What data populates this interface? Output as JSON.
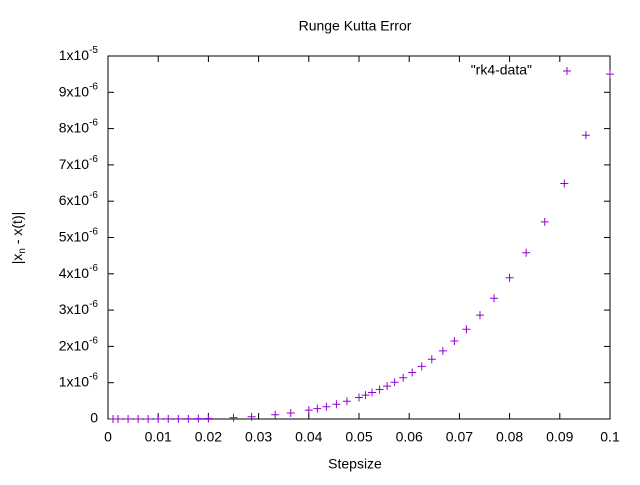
{
  "chart_data": {
    "type": "scatter",
    "title": "Runge Kutta Error",
    "xlabel": "Stepsize",
    "ylabel": {
      "text": "|x",
      "subscript": "n",
      "suffix": " - x(t)|"
    },
    "xlim": [
      0,
      0.1
    ],
    "ylim": [
      0,
      1e-05
    ],
    "xticks": [
      0,
      0.01,
      0.02,
      0.03,
      0.04,
      0.05,
      0.06,
      0.07,
      0.08,
      0.09,
      0.1
    ],
    "yticks": [
      0,
      {
        "value": 1e-06,
        "label": "1x10",
        "exponent": "-6"
      },
      {
        "value": 2e-06,
        "label": "2x10",
        "exponent": "-6"
      },
      {
        "value": 3e-06,
        "label": "3x10",
        "exponent": "-6"
      },
      {
        "value": 4e-06,
        "label": "4x10",
        "exponent": "-6"
      },
      {
        "value": 5e-06,
        "label": "5x10",
        "exponent": "-6"
      },
      {
        "value": 6e-06,
        "label": "6x10",
        "exponent": "-6"
      },
      {
        "value": 7e-06,
        "label": "7x10",
        "exponent": "-6"
      },
      {
        "value": 8e-06,
        "label": "8x10",
        "exponent": "-6"
      },
      {
        "value": 9e-06,
        "label": "9x10",
        "exponent": "-6"
      },
      {
        "value": 1e-05,
        "label": "1x10",
        "exponent": "-5"
      }
    ],
    "legend": "top-right",
    "series": [
      {
        "name": "\"rk4-data\"",
        "color": "#9400d3",
        "x": [
          0.1,
          0.0952,
          0.0909,
          0.087,
          0.0833,
          0.08,
          0.0769,
          0.0741,
          0.0714,
          0.069,
          0.0667,
          0.0645,
          0.0625,
          0.0606,
          0.0588,
          0.0571,
          0.0556,
          0.0541,
          0.0526,
          0.0513,
          0.05,
          0.0476,
          0.0455,
          0.0435,
          0.0417,
          0.04,
          0.0364,
          0.0333,
          0.0286,
          0.025,
          0.02,
          0.018,
          0.016,
          0.014,
          0.012,
          0.01,
          0.008,
          0.006,
          0.004,
          0.002,
          0.001
        ],
        "values": [
          9.5e-06,
          7.816e-06,
          6.489e-06,
          5.432e-06,
          4.581e-06,
          3.891e-06,
          3.326e-06,
          2.86e-06,
          2.473e-06,
          2.149e-06,
          1.877e-06,
          1.646e-06,
          1.45e-06,
          1.282e-06,
          1.137e-06,
          1.013e-06,
          9.05e-07,
          8.11e-07,
          7.29e-07,
          6.57e-07,
          5.94e-07,
          4.88e-07,
          4.06e-07,
          3.39e-07,
          2.86e-07,
          2.43e-07,
          1.66e-07,
          1.17e-07,
          6.3e-08,
          3.7e-08,
          1.5e-08,
          9.97e-09,
          6.2e-09,
          3.6e-09,
          1.97e-09,
          9.5e-10,
          3.9e-10,
          1.2e-10,
          2.4e-11,
          1.5e-12,
          9.5e-14
        ]
      }
    ]
  }
}
